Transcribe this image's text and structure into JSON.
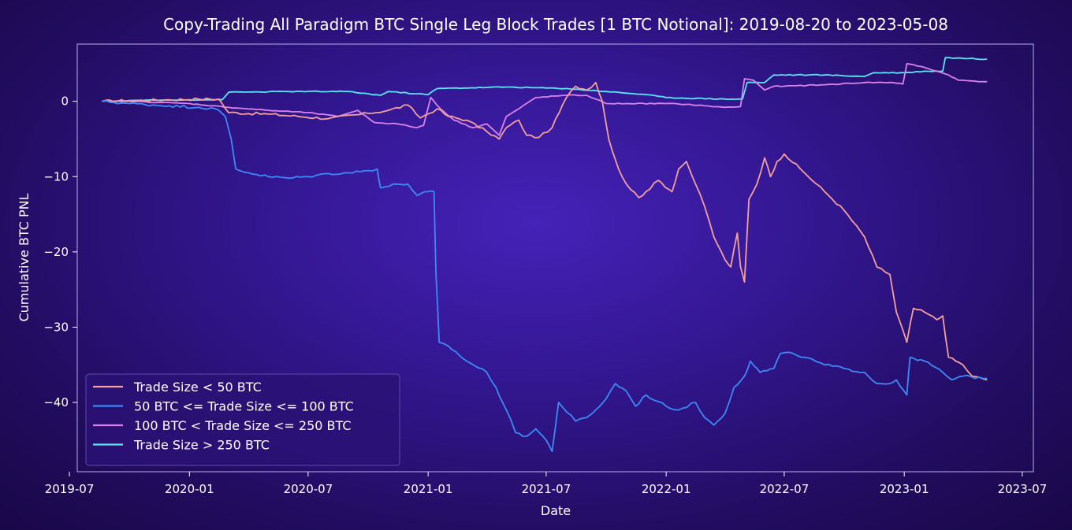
{
  "chart_data": {
    "type": "line",
    "title": "Copy-Trading All Paradigm BTC Single Leg Block Trades [1 BTC Notional]: 2019-08-20 to 2023-05-08",
    "xlabel": "Date",
    "ylabel": "Cumulative BTC PNL",
    "xlim": [
      "2019-07-13",
      "2023-07-18"
    ],
    "ylim": [
      -49.2,
      7.6
    ],
    "x_ticks": [
      "2019-07",
      "2020-01",
      "2020-07",
      "2021-01",
      "2021-07",
      "2022-01",
      "2022-07",
      "2023-01",
      "2023-07"
    ],
    "y_ticks": [
      0,
      -10,
      -20,
      -30,
      -40
    ],
    "y_tick_labels": [
      "0",
      "−10",
      "−20",
      "−30",
      "−40"
    ],
    "grid": false,
    "legend_position": "bottom-left",
    "series": [
      {
        "name": "Trade Size < 50 BTC",
        "color": "#f4a09c",
        "points": [
          [
            "2019-08-20",
            0
          ],
          [
            "2019-10-01",
            0.1
          ],
          [
            "2019-12-01",
            0.2
          ],
          [
            "2020-01-15",
            0.3
          ],
          [
            "2020-02-15",
            0.3
          ],
          [
            "2020-03-01",
            -1.5
          ],
          [
            "2020-05-01",
            -1.7
          ],
          [
            "2020-06-15",
            -2.0
          ],
          [
            "2020-08-01",
            -2.3
          ],
          [
            "2020-10-01",
            -1.6
          ],
          [
            "2020-11-01",
            -1.2
          ],
          [
            "2020-12-01",
            -0.5
          ],
          [
            "2020-12-20",
            -2.2
          ],
          [
            "2021-01-15",
            -1.0
          ],
          [
            "2021-02-01",
            -2.0
          ],
          [
            "2021-03-01",
            -2.5
          ],
          [
            "2021-04-01",
            -4.0
          ],
          [
            "2021-04-20",
            -5.0
          ],
          [
            "2021-05-01",
            -3.5
          ],
          [
            "2021-05-20",
            -2.5
          ],
          [
            "2021-06-01",
            -4.5
          ],
          [
            "2021-06-20",
            -4.8
          ],
          [
            "2021-07-10",
            -3.5
          ],
          [
            "2021-08-01",
            0.5
          ],
          [
            "2021-08-15",
            2.0
          ],
          [
            "2021-09-01",
            1.5
          ],
          [
            "2021-09-15",
            2.5
          ],
          [
            "2021-09-25",
            0.0
          ],
          [
            "2021-10-05",
            -5.0
          ],
          [
            "2021-10-20",
            -9.0
          ],
          [
            "2021-11-01",
            -11.0
          ],
          [
            "2021-11-20",
            -12.8
          ],
          [
            "2021-12-01",
            -12.0
          ],
          [
            "2021-12-20",
            -10.5
          ],
          [
            "2022-01-10",
            -12.0
          ],
          [
            "2022-01-20",
            -9.0
          ],
          [
            "2022-02-01",
            -8.0
          ],
          [
            "2022-02-15",
            -11.0
          ],
          [
            "2022-03-01",
            -14.0
          ],
          [
            "2022-03-15",
            -18.0
          ],
          [
            "2022-04-01",
            -21.0
          ],
          [
            "2022-04-10",
            -22.0
          ],
          [
            "2022-04-20",
            -17.5
          ],
          [
            "2022-04-25",
            -22.0
          ],
          [
            "2022-05-01",
            -24.0
          ],
          [
            "2022-05-08",
            -13.0
          ],
          [
            "2022-05-20",
            -11.0
          ],
          [
            "2022-06-01",
            -7.5
          ],
          [
            "2022-06-10",
            -10.0
          ],
          [
            "2022-06-20",
            -8.0
          ],
          [
            "2022-07-01",
            -7.0
          ],
          [
            "2022-08-01",
            -9.5
          ],
          [
            "2022-09-01",
            -12.0
          ],
          [
            "2022-10-01",
            -14.5
          ],
          [
            "2022-11-01",
            -18.0
          ],
          [
            "2022-11-20",
            -22.0
          ],
          [
            "2022-12-10",
            -23.0
          ],
          [
            "2022-12-20",
            -28.0
          ],
          [
            "2023-01-05",
            -32.0
          ],
          [
            "2023-01-15",
            -27.5
          ],
          [
            "2023-02-01",
            -28.0
          ],
          [
            "2023-02-20",
            -29.0
          ],
          [
            "2023-03-01",
            -28.5
          ],
          [
            "2023-03-10",
            -34.0
          ],
          [
            "2023-04-01",
            -35.0
          ],
          [
            "2023-04-15",
            -36.5
          ],
          [
            "2023-05-08",
            -37.0
          ]
        ]
      },
      {
        "name": "50 BTC <= Trade Size <= 100 BTC",
        "color": "#3d8af7",
        "points": [
          [
            "2019-08-20",
            0
          ],
          [
            "2019-10-01",
            -0.3
          ],
          [
            "2019-12-01",
            -0.6
          ],
          [
            "2020-01-15",
            -0.8
          ],
          [
            "2020-02-10",
            -1.0
          ],
          [
            "2020-02-25",
            -2.0
          ],
          [
            "2020-03-05",
            -5.0
          ],
          [
            "2020-03-12",
            -9.0
          ],
          [
            "2020-04-01",
            -9.5
          ],
          [
            "2020-05-01",
            -10.0
          ],
          [
            "2020-06-01",
            -10.2
          ],
          [
            "2020-07-01",
            -10.0
          ],
          [
            "2020-08-01",
            -9.6
          ],
          [
            "2020-09-01",
            -9.5
          ],
          [
            "2020-10-01",
            -9.2
          ],
          [
            "2020-10-15",
            -9.0
          ],
          [
            "2020-10-20",
            -11.5
          ],
          [
            "2020-11-15",
            -11.0
          ],
          [
            "2020-12-01",
            -11.0
          ],
          [
            "2020-12-15",
            -12.5
          ],
          [
            "2021-01-01",
            -12.0
          ],
          [
            "2021-01-10",
            -12.0
          ],
          [
            "2021-01-13",
            -23.0
          ],
          [
            "2021-01-18",
            -32.0
          ],
          [
            "2021-02-01",
            -32.5
          ],
          [
            "2021-03-01",
            -34.5
          ],
          [
            "2021-04-01",
            -36.0
          ],
          [
            "2021-04-15",
            -38.0
          ],
          [
            "2021-05-01",
            -41.0
          ],
          [
            "2021-05-15",
            -44.0
          ],
          [
            "2021-06-01",
            -44.5
          ],
          [
            "2021-06-15",
            -43.5
          ],
          [
            "2021-07-01",
            -45.0
          ],
          [
            "2021-07-10",
            -46.5
          ],
          [
            "2021-07-20",
            -40.0
          ],
          [
            "2021-08-15",
            -42.5
          ],
          [
            "2021-09-01",
            -42.0
          ],
          [
            "2021-09-15",
            -41.0
          ],
          [
            "2021-10-01",
            -39.5
          ],
          [
            "2021-10-15",
            -37.5
          ],
          [
            "2021-11-01",
            -38.5
          ],
          [
            "2021-11-15",
            -40.5
          ],
          [
            "2021-12-01",
            -39.0
          ],
          [
            "2022-01-01",
            -40.5
          ],
          [
            "2022-01-20",
            -41.0
          ],
          [
            "2022-02-15",
            -40.0
          ],
          [
            "2022-03-01",
            -42.0
          ],
          [
            "2022-03-15",
            -43.0
          ],
          [
            "2022-04-01",
            -41.5
          ],
          [
            "2022-04-15",
            -38.0
          ],
          [
            "2022-05-01",
            -36.5
          ],
          [
            "2022-05-10",
            -34.5
          ],
          [
            "2022-05-25",
            -36.0
          ],
          [
            "2022-06-15",
            -35.5
          ],
          [
            "2022-06-25",
            -33.5
          ],
          [
            "2022-07-15",
            -33.5
          ],
          [
            "2022-08-01",
            -34.0
          ],
          [
            "2022-09-01",
            -35.0
          ],
          [
            "2022-10-01",
            -35.5
          ],
          [
            "2022-11-01",
            -36.0
          ],
          [
            "2022-11-20",
            -37.5
          ],
          [
            "2022-12-10",
            -37.5
          ],
          [
            "2022-12-20",
            -37.0
          ],
          [
            "2023-01-05",
            -39.0
          ],
          [
            "2023-01-10",
            -34.0
          ],
          [
            "2023-02-01",
            -34.5
          ],
          [
            "2023-03-01",
            -36.0
          ],
          [
            "2023-03-15",
            -37.0
          ],
          [
            "2023-04-01",
            -36.5
          ],
          [
            "2023-05-08",
            -36.8
          ]
        ]
      },
      {
        "name": "100 BTC < Trade Size <= 250 BTC",
        "color": "#d982e8",
        "points": [
          [
            "2019-08-20",
            0
          ],
          [
            "2019-10-01",
            0.0
          ],
          [
            "2020-01-01",
            -0.3
          ],
          [
            "2020-03-01",
            -0.8
          ],
          [
            "2020-05-01",
            -1.2
          ],
          [
            "2020-07-01",
            -1.5
          ],
          [
            "2020-08-15",
            -2.0
          ],
          [
            "2020-09-15",
            -1.2
          ],
          [
            "2020-10-10",
            -2.8
          ],
          [
            "2020-11-15",
            -3.0
          ],
          [
            "2020-12-15",
            -3.5
          ],
          [
            "2020-12-25",
            -3.2
          ],
          [
            "2021-01-05",
            0.5
          ],
          [
            "2021-01-20",
            -1.0
          ],
          [
            "2021-02-10",
            -2.5
          ],
          [
            "2021-03-10",
            -3.5
          ],
          [
            "2021-04-01",
            -3.0
          ],
          [
            "2021-04-20",
            -4.5
          ],
          [
            "2021-05-01",
            -2.0
          ],
          [
            "2021-05-20",
            -1.0
          ],
          [
            "2021-06-15",
            0.5
          ],
          [
            "2021-08-01",
            0.8
          ],
          [
            "2021-09-01",
            0.8
          ],
          [
            "2021-09-15",
            0.3
          ],
          [
            "2021-10-01",
            -0.3
          ],
          [
            "2021-11-01",
            -0.3
          ],
          [
            "2022-01-01",
            -0.3
          ],
          [
            "2022-02-01",
            -0.4
          ],
          [
            "2022-03-01",
            -0.6
          ],
          [
            "2022-04-01",
            -0.8
          ],
          [
            "2022-04-25",
            -0.7
          ],
          [
            "2022-05-01",
            3.0
          ],
          [
            "2022-05-15",
            2.8
          ],
          [
            "2022-06-01",
            1.5
          ],
          [
            "2022-06-15",
            2.0
          ],
          [
            "2022-07-01",
            2.0
          ],
          [
            "2022-09-01",
            2.2
          ],
          [
            "2022-11-01",
            2.5
          ],
          [
            "2022-12-15",
            2.5
          ],
          [
            "2022-12-30",
            2.3
          ],
          [
            "2023-01-05",
            5.0
          ],
          [
            "2023-02-01",
            4.5
          ],
          [
            "2023-02-20",
            4.0
          ],
          [
            "2023-03-10",
            3.5
          ],
          [
            "2023-03-25",
            2.8
          ],
          [
            "2023-05-08",
            2.6
          ]
        ]
      },
      {
        "name": "Trade Size > 250 BTC",
        "color": "#5ee4f0",
        "points": [
          [
            "2019-08-20",
            0
          ],
          [
            "2019-10-01",
            0.1
          ],
          [
            "2020-01-01",
            0.2
          ],
          [
            "2020-02-20",
            0.2
          ],
          [
            "2020-03-01",
            1.2
          ],
          [
            "2020-06-01",
            1.3
          ],
          [
            "2020-09-01",
            1.3
          ],
          [
            "2020-10-20",
            0.8
          ],
          [
            "2020-11-01",
            1.3
          ],
          [
            "2020-12-15",
            1.0
          ],
          [
            "2021-01-01",
            0.9
          ],
          [
            "2021-01-15",
            1.7
          ],
          [
            "2021-05-01",
            1.9
          ],
          [
            "2021-08-01",
            1.7
          ],
          [
            "2021-10-01",
            1.3
          ],
          [
            "2021-12-01",
            0.9
          ],
          [
            "2022-01-01",
            0.5
          ],
          [
            "2022-04-01",
            0.3
          ],
          [
            "2022-04-28",
            0.3
          ],
          [
            "2022-05-05",
            2.5
          ],
          [
            "2022-06-01",
            2.5
          ],
          [
            "2022-06-15",
            3.5
          ],
          [
            "2022-09-01",
            3.5
          ],
          [
            "2022-11-01",
            3.3
          ],
          [
            "2022-11-15",
            3.8
          ],
          [
            "2023-01-01",
            3.8
          ],
          [
            "2023-02-01",
            4.0
          ],
          [
            "2023-03-01",
            4.0
          ],
          [
            "2023-03-05",
            5.8
          ],
          [
            "2023-05-08",
            5.6
          ]
        ]
      }
    ]
  }
}
